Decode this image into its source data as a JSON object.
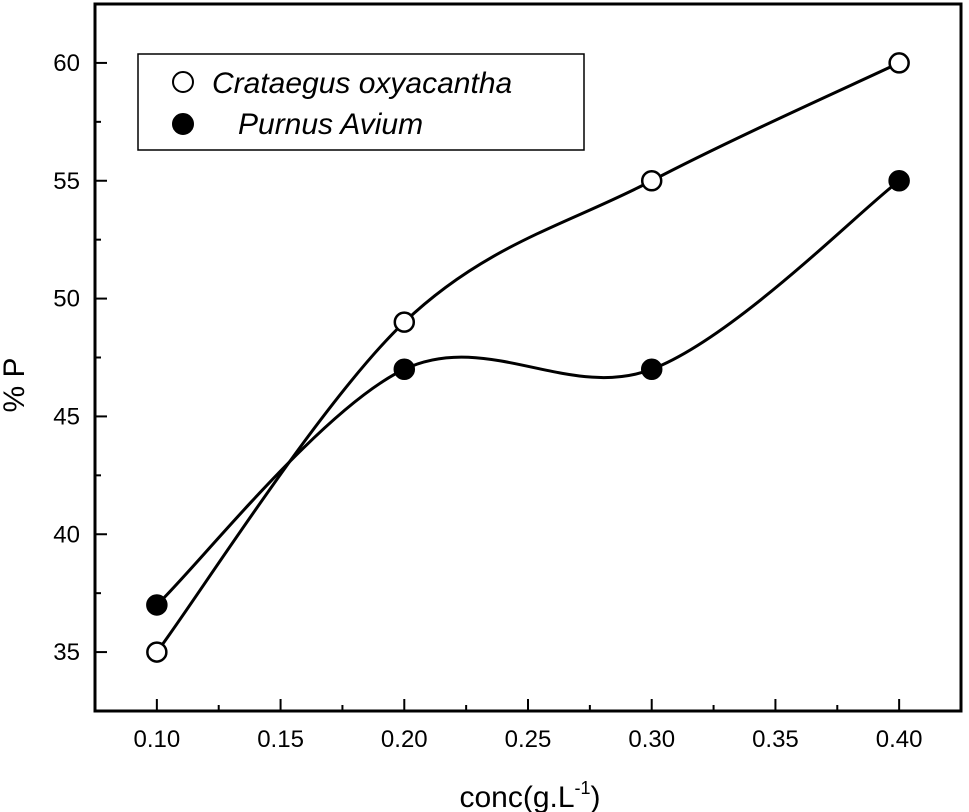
{
  "chart_data": {
    "type": "scatter",
    "xlabel": {
      "base": "conc(g.L",
      "superscript": "-1",
      "suffix": ")"
    },
    "ylabel": "% P",
    "xlim": [
      0.075,
      0.425
    ],
    "ylim": [
      32.5,
      62.5
    ],
    "x_ticks": [
      "0.10",
      "0.15",
      "0.20",
      "0.25",
      "0.30",
      "0.35",
      "0.40"
    ],
    "y_ticks": [
      "35",
      "40",
      "45",
      "50",
      "55",
      "60"
    ],
    "legend_position": "top-left",
    "grid": false,
    "series": [
      {
        "name": "Crataegus oxyacantha",
        "marker": "open-circle",
        "color": "#000000",
        "x": [
          0.1,
          0.2,
          0.3,
          0.4
        ],
        "y": [
          35,
          49,
          55,
          60
        ],
        "fit": "smooth-curve"
      },
      {
        "name": "Purnus Avium",
        "marker": "filled-circle",
        "color": "#000000",
        "x": [
          0.1,
          0.2,
          0.3,
          0.4
        ],
        "y": [
          37,
          47,
          47,
          55
        ],
        "fit": "smooth-curve"
      }
    ]
  }
}
